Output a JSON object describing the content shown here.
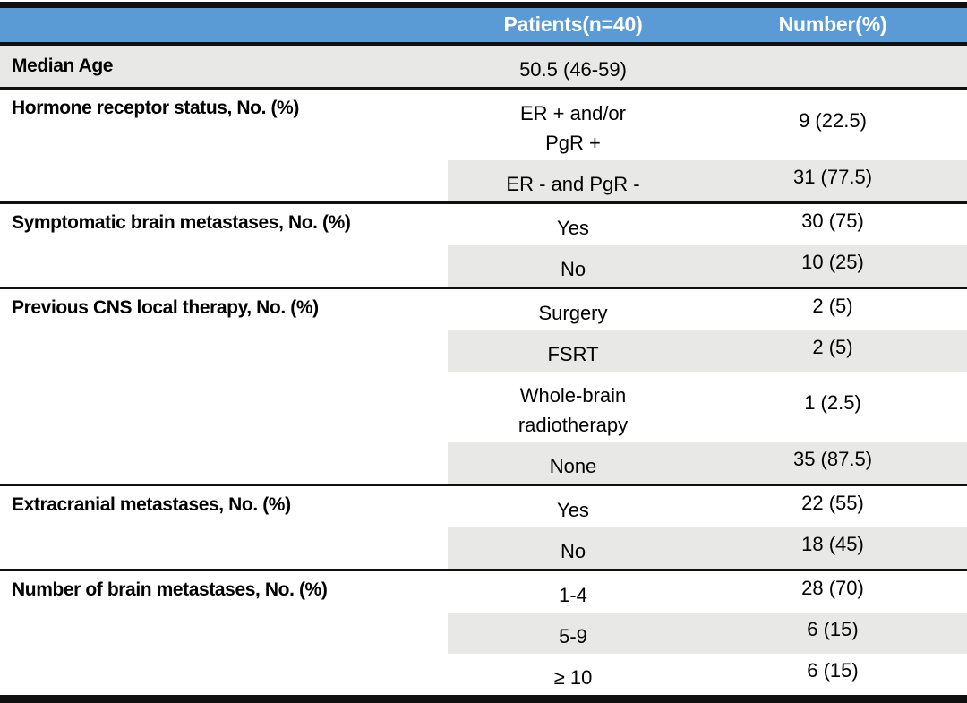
{
  "colors": {
    "header_bg": "#5b9bd5",
    "header_text": "#ffffff",
    "shade": "#e8e8e6",
    "rule": "#101010",
    "text": "#000000",
    "page_bg": "#ffffff"
  },
  "table": {
    "header": {
      "label": "",
      "patients": "Patients(n=40)",
      "number": "Number(%)"
    },
    "median_age": {
      "label": "Median Age",
      "value": "50.5 (46-59)",
      "number": ""
    },
    "sections": [
      {
        "label": "Hormone receptor status, No. (%)",
        "rows": [
          {
            "value": "ER + and/or\nPgR +",
            "number": "9 (22.5)"
          },
          {
            "value": "ER - and PgR -",
            "number": "31 (77.5)"
          }
        ]
      },
      {
        "label": "Symptomatic brain metastases, No. (%)",
        "rows": [
          {
            "value": "Yes",
            "number": "30 (75)"
          },
          {
            "value": "No",
            "number": "10 (25)"
          }
        ]
      },
      {
        "label": "Previous CNS local therapy, No. (%)",
        "rows": [
          {
            "value": "Surgery",
            "number": "2 (5)"
          },
          {
            "value": "FSRT",
            "number": "2 (5)"
          },
          {
            "value": "Whole-brain\nradiotherapy",
            "number": "1 (2.5)"
          },
          {
            "value": "None",
            "number": "35 (87.5)"
          }
        ]
      },
      {
        "label": "Extracranial metastases, No. (%)",
        "rows": [
          {
            "value": "Yes",
            "number": "22 (55)"
          },
          {
            "value": "No",
            "number": "18 (45)"
          }
        ]
      },
      {
        "label": "Number of brain metastases, No. (%)",
        "rows": [
          {
            "value": "1-4",
            "number": "28 (70)"
          },
          {
            "value": "5-9",
            "number": "6 (15)"
          },
          {
            "value": "≥ 10",
            "number": "6 (15)"
          }
        ]
      }
    ]
  },
  "chart_data": {
    "type": "table",
    "columns": [
      "",
      "Patients(n=40)",
      "Number(%)"
    ],
    "rows": [
      [
        "Median Age",
        "50.5 (46-59)",
        ""
      ],
      [
        "Hormone receptor status, No. (%)",
        "ER + and/or PgR +",
        "9 (22.5)"
      ],
      [
        "",
        "ER - and PgR -",
        "31 (77.5)"
      ],
      [
        "Symptomatic brain metastases, No. (%)",
        "Yes",
        "30 (75)"
      ],
      [
        "",
        "No",
        "10 (25)"
      ],
      [
        "Previous CNS local therapy, No. (%)",
        "Surgery",
        "2 (5)"
      ],
      [
        "",
        "FSRT",
        "2 (5)"
      ],
      [
        "",
        "Whole-brain radiotherapy",
        "1 (2.5)"
      ],
      [
        "",
        "None",
        "35 (87.5)"
      ],
      [
        "Extracranial metastases, No. (%)",
        "Yes",
        "22 (55)"
      ],
      [
        "",
        "No",
        "18 (45)"
      ],
      [
        "Number of brain metastases, No. (%)",
        "1-4",
        "28 (70)"
      ],
      [
        "",
        "5-9",
        "6 (15)"
      ],
      [
        "",
        "≥ 10",
        "6 (15)"
      ]
    ]
  }
}
